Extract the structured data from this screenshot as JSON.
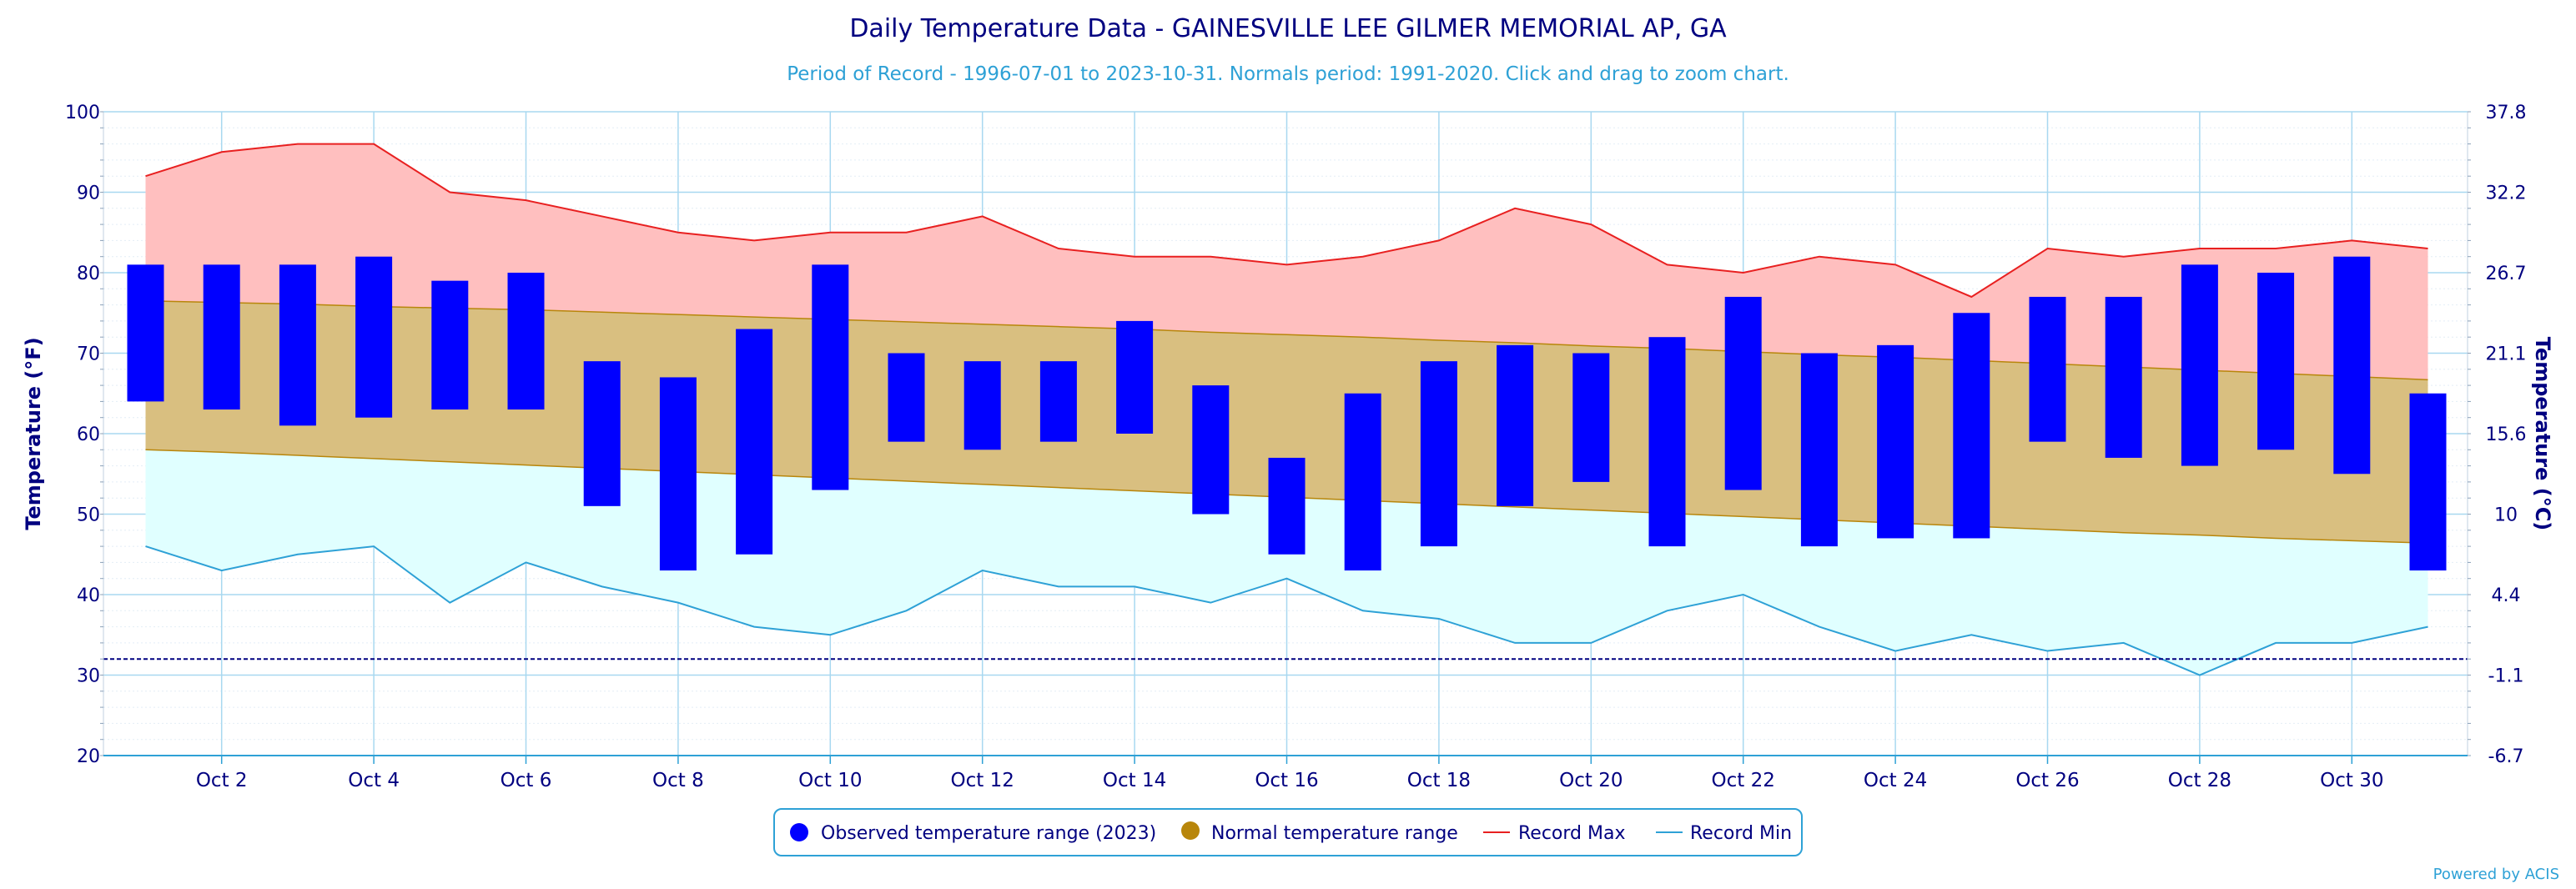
{
  "title": "Daily Temperature Data - GAINESVILLE LEE GILMER MEMORIAL AP, GA",
  "subtitle": "Period of Record - 1996-07-01 to 2023-10-31. Normals period: 1991-2020. Click and drag to zoom chart.",
  "credit": "Powered by ACIS",
  "colors": {
    "observed": "#0000ff",
    "normal_fill": "#d9bf80",
    "normal_line": "#b8860b",
    "record_max_fill": "#ffbfbf",
    "record_max_line": "#e82020",
    "record_min_fill": "#e0ffff",
    "record_min_line": "#2ea1d6",
    "grid": "#a8d8f0",
    "freezing": "#000080"
  },
  "chart_data": {
    "type": "bar",
    "title": "Daily Temperature Data - GAINESVILLE LEE GILMER MEMORIAL AP, GA",
    "ylabel": "Temperature (°F)",
    "y2label": "Temperature (°C)",
    "ylim": [
      20,
      100
    ],
    "yticks": [
      20,
      30,
      40,
      50,
      60,
      70,
      80,
      90,
      100
    ],
    "y2ticks": [
      "-6.7",
      "-1.1",
      "4.4",
      "10",
      "15.6",
      "21.1",
      "26.7",
      "32.2",
      "37.8"
    ],
    "freezing_line": 32,
    "grid": true,
    "legend_position": "bottom-center",
    "days": [
      1,
      2,
      3,
      4,
      5,
      6,
      7,
      8,
      9,
      10,
      11,
      12,
      13,
      14,
      15,
      16,
      17,
      18,
      19,
      20,
      21,
      22,
      23,
      24,
      25,
      26,
      27,
      28,
      29,
      30,
      31
    ],
    "x_tick_days": [
      2,
      4,
      6,
      8,
      10,
      12,
      14,
      16,
      18,
      20,
      22,
      24,
      26,
      28,
      30
    ],
    "x_tick_labels": [
      "Oct 2",
      "Oct 4",
      "Oct 6",
      "Oct 8",
      "Oct 10",
      "Oct 12",
      "Oct 14",
      "Oct 16",
      "Oct 18",
      "Oct 20",
      "Oct 22",
      "Oct 24",
      "Oct 26",
      "Oct 28",
      "Oct 30"
    ],
    "series": [
      {
        "name": "Observed temperature range (2023)",
        "type": "range-bar",
        "high": [
          81,
          81,
          81,
          82,
          79,
          80,
          69,
          67,
          73,
          81,
          70,
          69,
          69,
          74,
          66,
          57,
          65,
          69,
          71,
          70,
          72,
          77,
          70,
          71,
          75,
          77,
          77,
          81,
          80,
          82,
          65
        ],
        "low": [
          64,
          63,
          61,
          62,
          63,
          63,
          51,
          43,
          45,
          53,
          59,
          58,
          59,
          60,
          50,
          45,
          43,
          46,
          51,
          54,
          46,
          53,
          46,
          47,
          47,
          59,
          57,
          56,
          58,
          55,
          43
        ]
      },
      {
        "name": "Normal temperature range",
        "type": "range-area",
        "high": [
          76.5,
          76.3,
          76.1,
          75.8,
          75.6,
          75.4,
          75.1,
          74.8,
          74.5,
          74.2,
          73.9,
          73.6,
          73.3,
          73.0,
          72.6,
          72.3,
          72.0,
          71.6,
          71.3,
          70.9,
          70.6,
          70.2,
          69.8,
          69.5,
          69.1,
          68.7,
          68.3,
          67.9,
          67.5,
          67.1,
          66.7
        ],
        "low": [
          58.0,
          57.7,
          57.3,
          56.9,
          56.5,
          56.1,
          55.7,
          55.3,
          54.9,
          54.5,
          54.1,
          53.7,
          53.3,
          52.9,
          52.5,
          52.1,
          51.7,
          51.3,
          50.9,
          50.5,
          50.1,
          49.7,
          49.3,
          48.9,
          48.5,
          48.1,
          47.7,
          47.4,
          47.0,
          46.7,
          46.4
        ]
      },
      {
        "name": "Record Max",
        "type": "line",
        "values": [
          92,
          95,
          96,
          96,
          90,
          89,
          87,
          85,
          84,
          85,
          85,
          87,
          83,
          82,
          82,
          81,
          82,
          84,
          88,
          86,
          81,
          80,
          82,
          81,
          77,
          83,
          82,
          83,
          83,
          84,
          83
        ]
      },
      {
        "name": "Record Min",
        "type": "line",
        "values": [
          46,
          43,
          45,
          46,
          39,
          44,
          41,
          39,
          36,
          35,
          38,
          43,
          41,
          41,
          39,
          42,
          38,
          37,
          34,
          34,
          38,
          40,
          36,
          33,
          35,
          33,
          34,
          30,
          34,
          34,
          36
        ]
      }
    ]
  }
}
